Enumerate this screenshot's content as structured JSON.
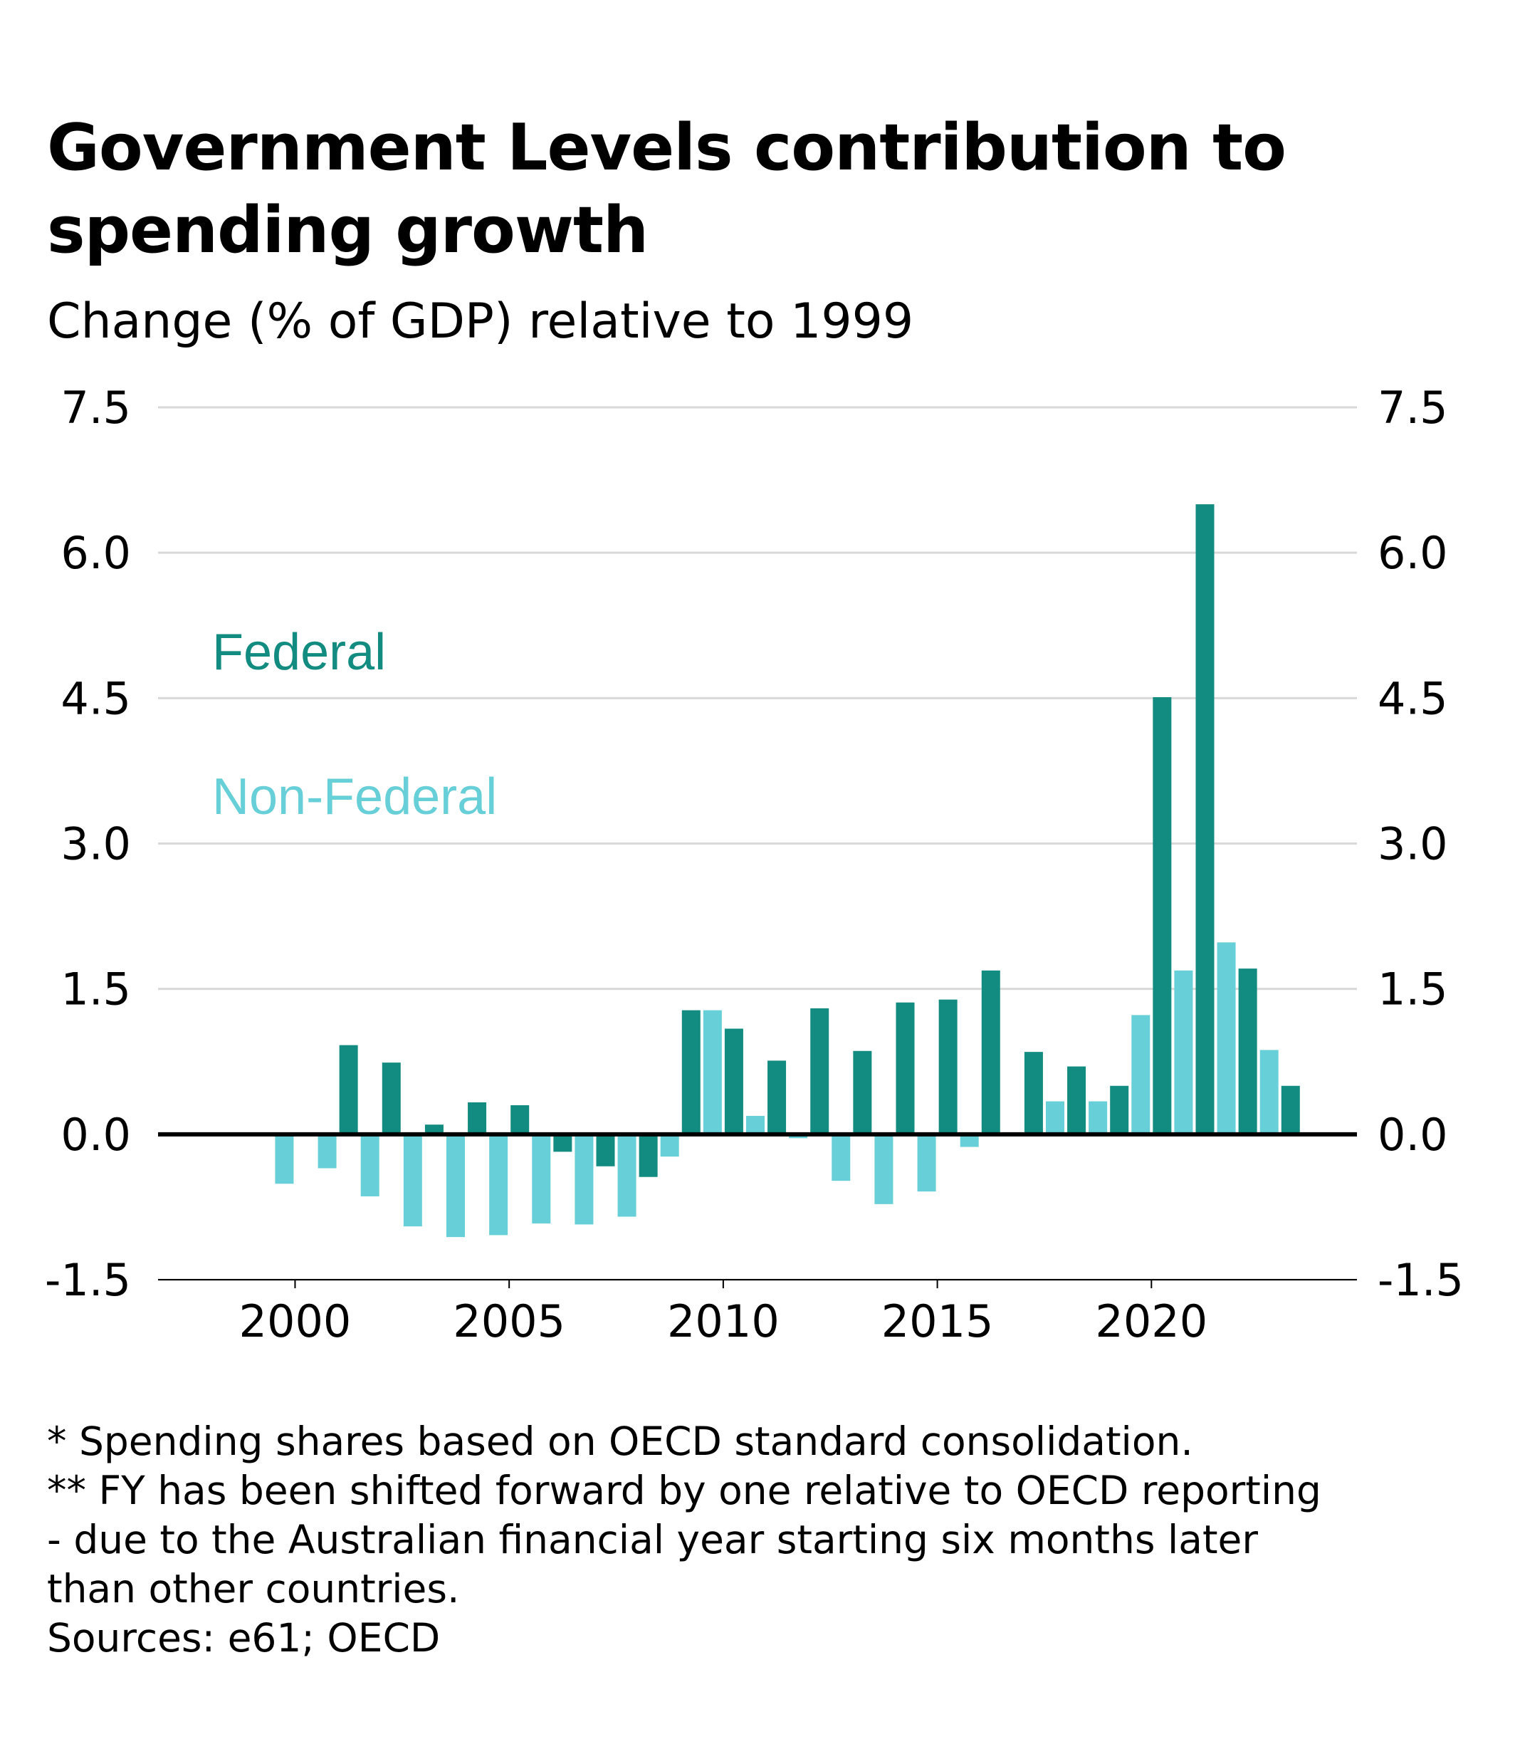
{
  "title": "Government Levels contribution to spending growth",
  "subtitle": "Change (% of GDP) relative to 1999",
  "colors": {
    "federal": "#128b80",
    "non_federal": "#67cfd7",
    "grid": "#d9d9d9",
    "zero": "#000000"
  },
  "chart_data": {
    "type": "bar",
    "title": "Government Levels contribution to spending growth",
    "subtitle": "Change (% of GDP) relative to 1999",
    "ylim": [
      -1.5,
      7.5
    ],
    "yticks": [
      "-1.5",
      "0.0",
      "1.5",
      "3.0",
      "4.5",
      "6.0",
      "7.5"
    ],
    "xticks": [
      "2000",
      "2005",
      "2010",
      "2015",
      "2020"
    ],
    "xlim": [
      1996.8,
      2024.8
    ],
    "grid": true,
    "y_axis_both_sides": true,
    "legend_placement": "upper-left",
    "x": [
      2000,
      2001,
      2002,
      2003,
      2004,
      2005,
      2006,
      2007,
      2008,
      2009,
      2010,
      2011,
      2012,
      2013,
      2014,
      2015,
      2016,
      2017,
      2018,
      2019,
      2020,
      2021,
      2022,
      2023
    ],
    "series": [
      {
        "name": "Federal",
        "color": "#128b80",
        "offset": 0.25,
        "values": [
          0,
          0.92,
          0.74,
          0.1,
          0.33,
          0.3,
          -0.18,
          -0.33,
          -0.44,
          1.28,
          1.09,
          0.76,
          1.3,
          0.86,
          1.36,
          1.39,
          1.69,
          0.85,
          0.7,
          0.5,
          4.51,
          6.5,
          1.71,
          0.5
        ]
      },
      {
        "name": "Non-Federal",
        "color": "#67cfd7",
        "offset": -0.25,
        "values": [
          -0.51,
          -0.35,
          -0.64,
          -0.95,
          -1.06,
          -1.04,
          -0.92,
          -0.93,
          -0.85,
          -0.23,
          1.28,
          0.19,
          -0.04,
          -0.48,
          -0.72,
          -0.59,
          -0.13,
          0,
          0.34,
          0.34,
          1.23,
          1.69,
          1.98,
          0.87
        ]
      }
    ]
  },
  "notes": [
    "* Spending shares based on OECD standard consolidation.",
    "** FY has been shifted forward by one relative to OECD reporting",
    "- due to the Australian financial year starting six months later",
    "than other countries.",
    "Sources: e61; OECD"
  ]
}
